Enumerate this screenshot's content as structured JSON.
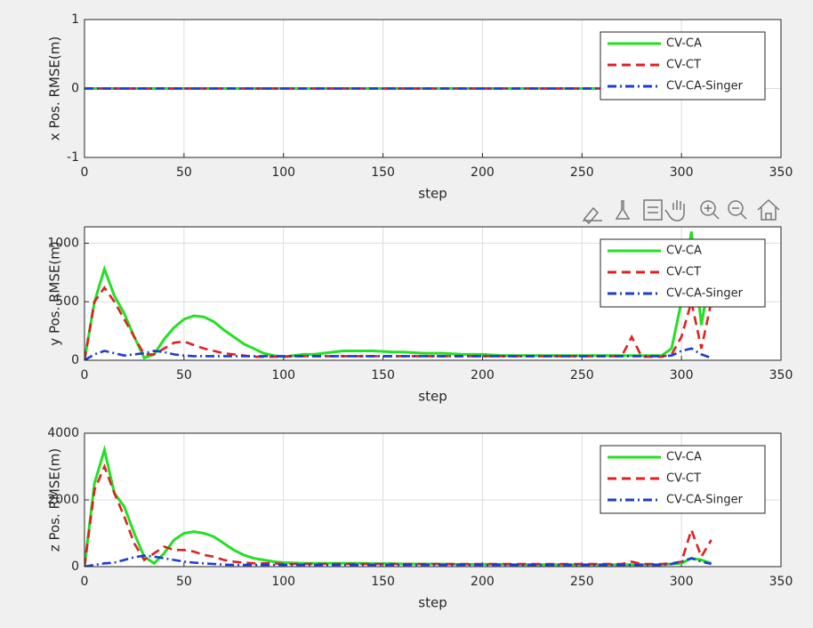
{
  "chart_data": [
    {
      "type": "line",
      "y_label": "x Pos. RMSE(m)",
      "x_label": "step",
      "grid": true,
      "legend": "upper right",
      "xlim": [
        0,
        350
      ],
      "xticks": [
        0,
        50,
        100,
        150,
        200,
        250,
        300,
        350
      ],
      "ylim": [
        -1,
        1
      ],
      "yticks": [
        -1,
        0,
        1
      ],
      "x": [
        0,
        315
      ],
      "series": [
        {
          "name": "CV-CA",
          "color": "#22e022",
          "linestyle": "solid",
          "values": [
            0,
            0
          ]
        },
        {
          "name": "CV-CT",
          "color": "#e02020",
          "linestyle": "dashed",
          "values": [
            0,
            0
          ]
        },
        {
          "name": "CV-CA-Singer",
          "color": "#1e3cd2",
          "linestyle": "dashdot",
          "values": [
            0,
            0
          ]
        }
      ]
    },
    {
      "type": "line",
      "y_label": "y Pos. RMSE(m)",
      "x_label": "step",
      "grid": true,
      "legend": "upper right",
      "xlim": [
        0,
        350
      ],
      "xticks": [
        0,
        50,
        100,
        150,
        200,
        250,
        300,
        350
      ],
      "ylim": [
        0,
        1140
      ],
      "yticks": [
        0,
        500,
        1000
      ],
      "x": [
        0,
        5,
        10,
        15,
        20,
        25,
        30,
        35,
        40,
        45,
        50,
        55,
        60,
        65,
        70,
        75,
        80,
        85,
        90,
        95,
        100,
        105,
        110,
        115,
        120,
        125,
        130,
        135,
        140,
        145,
        150,
        155,
        160,
        165,
        170,
        175,
        180,
        185,
        190,
        195,
        200,
        205,
        210,
        215,
        220,
        225,
        230,
        235,
        240,
        245,
        250,
        255,
        260,
        265,
        270,
        275,
        280,
        285,
        290,
        295,
        300,
        305,
        310,
        315
      ],
      "series": [
        {
          "name": "CV-CA",
          "color": "#22e022",
          "linestyle": "solid",
          "values": [
            0,
            500,
            780,
            550,
            400,
            200,
            20,
            50,
            180,
            280,
            350,
            380,
            370,
            330,
            260,
            200,
            140,
            100,
            60,
            40,
            30,
            40,
            50,
            50,
            60,
            70,
            80,
            80,
            80,
            80,
            75,
            70,
            70,
            65,
            60,
            60,
            60,
            55,
            50,
            50,
            50,
            45,
            40,
            40,
            40,
            40,
            40,
            40,
            40,
            40,
            40,
            40,
            40,
            40,
            40,
            40,
            40,
            40,
            40,
            100,
            500,
            1100,
            300,
            800
          ]
        },
        {
          "name": "CV-CT",
          "color": "#e02020",
          "linestyle": "dashed",
          "values": [
            0,
            500,
            620,
            500,
            350,
            200,
            50,
            50,
            100,
            150,
            160,
            130,
            100,
            80,
            60,
            50,
            40,
            30,
            30,
            30,
            30,
            35,
            35,
            35,
            35,
            35,
            35,
            35,
            35,
            35,
            35,
            35,
            35,
            35,
            35,
            35,
            35,
            35,
            35,
            35,
            35,
            35,
            35,
            35,
            35,
            35,
            35,
            35,
            35,
            35,
            35,
            35,
            35,
            35,
            35,
            200,
            30,
            30,
            30,
            50,
            200,
            500,
            100,
            500
          ]
        },
        {
          "name": "CV-CA-Singer",
          "color": "#1e3cd2",
          "linestyle": "dashdot",
          "values": [
            0,
            50,
            80,
            60,
            40,
            50,
            60,
            80,
            70,
            50,
            40,
            35,
            35,
            35,
            35,
            35,
            35,
            35,
            35,
            35,
            35,
            35,
            35,
            35,
            35,
            35,
            35,
            35,
            35,
            35,
            35,
            35,
            35,
            35,
            35,
            35,
            35,
            35,
            35,
            35,
            35,
            35,
            35,
            35,
            35,
            35,
            35,
            35,
            35,
            35,
            35,
            35,
            35,
            35,
            35,
            35,
            35,
            35,
            35,
            40,
            80,
            100,
            50,
            20
          ]
        }
      ]
    },
    {
      "type": "line",
      "y_label": "z Pos. RMSE(m)",
      "x_label": "step",
      "grid": true,
      "legend": "upper right",
      "xlim": [
        0,
        350
      ],
      "xticks": [
        0,
        50,
        100,
        150,
        200,
        250,
        300,
        350
      ],
      "ylim": [
        0,
        4000
      ],
      "yticks": [
        0,
        2000,
        4000
      ],
      "x": [
        0,
        5,
        10,
        15,
        20,
        25,
        30,
        35,
        40,
        45,
        50,
        55,
        60,
        65,
        70,
        75,
        80,
        85,
        90,
        95,
        100,
        105,
        110,
        115,
        120,
        125,
        130,
        135,
        140,
        145,
        150,
        155,
        160,
        165,
        170,
        175,
        180,
        185,
        190,
        195,
        200,
        205,
        210,
        215,
        220,
        225,
        230,
        235,
        240,
        245,
        250,
        255,
        260,
        265,
        270,
        275,
        280,
        285,
        290,
        295,
        300,
        305,
        310,
        315
      ],
      "series": [
        {
          "name": "CV-CA",
          "color": "#22e022",
          "linestyle": "solid",
          "values": [
            0,
            2500,
            3500,
            2200,
            1800,
            1000,
            300,
            100,
            400,
            800,
            1000,
            1050,
            1000,
            900,
            700,
            500,
            350,
            250,
            200,
            150,
            120,
            110,
            100,
            100,
            100,
            100,
            100,
            100,
            100,
            90,
            90,
            90,
            80,
            80,
            80,
            80,
            80,
            70,
            70,
            70,
            70,
            70,
            70,
            60,
            60,
            60,
            60,
            60,
            60,
            60,
            60,
            60,
            60,
            60,
            60,
            60,
            60,
            60,
            60,
            80,
            100,
            250,
            200,
            100
          ]
        },
        {
          "name": "CV-CT",
          "color": "#e02020",
          "linestyle": "dashed",
          "values": [
            0,
            2300,
            3000,
            2200,
            1500,
            700,
            200,
            400,
            600,
            500,
            500,
            450,
            350,
            300,
            200,
            150,
            120,
            100,
            100,
            100,
            80,
            80,
            80,
            80,
            80,
            80,
            80,
            80,
            80,
            80,
            80,
            80,
            80,
            80,
            80,
            80,
            80,
            80,
            80,
            80,
            80,
            80,
            80,
            80,
            80,
            80,
            80,
            80,
            80,
            80,
            80,
            80,
            80,
            80,
            80,
            150,
            80,
            80,
            80,
            100,
            150,
            1100,
            300,
            800
          ]
        },
        {
          "name": "CV-CA-Singer",
          "color": "#1e3cd2",
          "linestyle": "dashdot",
          "values": [
            0,
            50,
            100,
            120,
            200,
            280,
            330,
            300,
            250,
            200,
            150,
            120,
            100,
            80,
            60,
            50,
            50,
            50,
            50,
            50,
            50,
            50,
            50,
            50,
            50,
            50,
            50,
            50,
            50,
            50,
            50,
            50,
            50,
            50,
            50,
            50,
            50,
            50,
            50,
            50,
            50,
            50,
            50,
            50,
            50,
            50,
            50,
            50,
            50,
            50,
            50,
            50,
            50,
            50,
            50,
            50,
            50,
            50,
            50,
            80,
            150,
            250,
            150,
            80
          ]
        }
      ]
    }
  ]
}
